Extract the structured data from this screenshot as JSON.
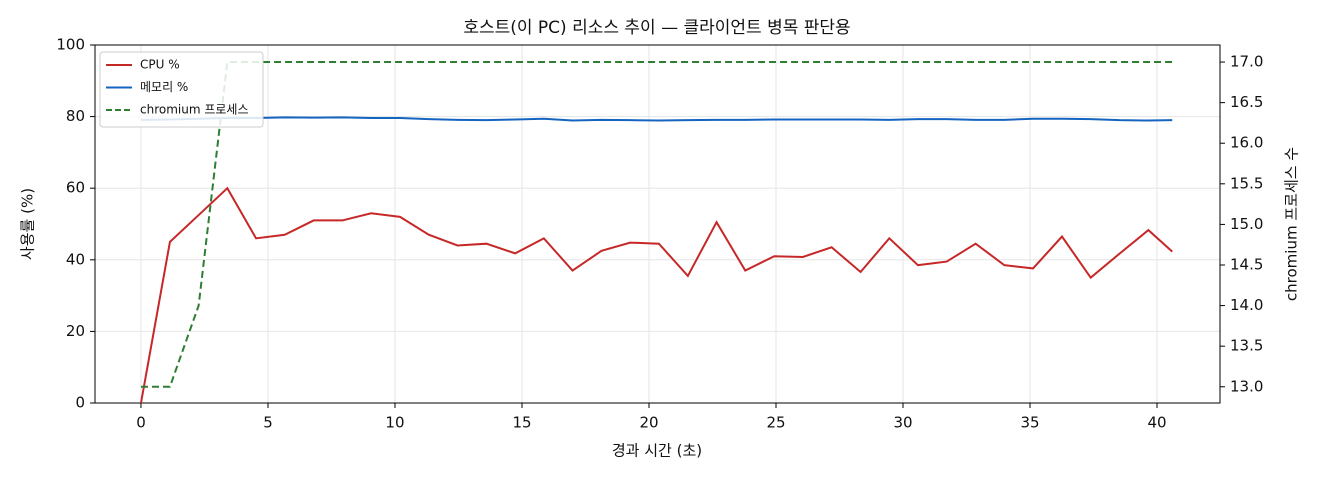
{
  "chart_data": {
    "type": "line",
    "title": "호스트(이 PC) 리소스 추이 — 클라이언트 병목 판단용",
    "x_label": "경과 시간 (초)",
    "y_label": "사용률 (%)",
    "y2_label": "chromium 프로세스 수",
    "x": [
      0,
      1.14,
      2.27,
      3.4,
      4.53,
      5.66,
      6.8,
      7.93,
      9.06,
      10.2,
      11.33,
      12.46,
      13.6,
      14.73,
      15.86,
      16.99,
      18.13,
      19.26,
      20.39,
      21.53,
      22.66,
      23.79,
      24.93,
      26.06,
      27.19,
      28.33,
      29.46,
      30.59,
      31.72,
      32.86,
      33.99,
      35.12,
      36.26,
      37.39,
      38.52,
      39.66,
      40.6
    ],
    "series": [
      {
        "name": "CPU %",
        "color": "#c62828",
        "linestyle": "solid",
        "values": [
          0,
          45,
          52.5,
          60,
          46,
          47,
          51,
          51,
          53,
          52,
          47,
          44,
          44.5,
          41.8,
          46,
          37,
          42.5,
          44.8,
          44.5,
          35.5,
          50.5,
          37,
          41,
          40.8,
          43.5,
          36.6,
          46,
          38.5,
          39.5,
          44.5,
          38.5,
          37.6,
          46.5,
          35,
          41.7,
          48.3,
          42.3
        ]
      },
      {
        "name": "메모리 %",
        "color": "#1565c0",
        "linestyle": "solid",
        "values": [
          79.1,
          79.2,
          79.4,
          79.6,
          79.6,
          79.8,
          79.7,
          79.8,
          79.6,
          79.6,
          79.3,
          79.1,
          79.0,
          79.2,
          79.4,
          78.9,
          79.1,
          79.0,
          78.9,
          79.0,
          79.1,
          79.1,
          79.2,
          79.2,
          79.2,
          79.2,
          79.1,
          79.3,
          79.3,
          79.1,
          79.1,
          79.4,
          79.4,
          79.3,
          79.0,
          78.9,
          79.0
        ]
      },
      {
        "name": "chromium 프로세스",
        "color": "#2e7d32",
        "linestyle": "dashed",
        "axis": "y2",
        "values": [
          13,
          13,
          14,
          17,
          17,
          17,
          17,
          17,
          17,
          17,
          17,
          17,
          17,
          17,
          17,
          17,
          17,
          17,
          17,
          17,
          17,
          17,
          17,
          17,
          17,
          17,
          17,
          17,
          17,
          17,
          17,
          17,
          17,
          17,
          17,
          17,
          17
        ]
      }
    ],
    "xlim": [
      -1.81,
      42.48
    ],
    "xticks": [
      0,
      5,
      10,
      15,
      20,
      25,
      30,
      35,
      40
    ],
    "ylim": [
      0,
      100
    ],
    "yticks": [
      0,
      20,
      40,
      60,
      80,
      100
    ],
    "y2lim": [
      12.8,
      17.21
    ],
    "y2ticks": [
      {
        "value": 13,
        "label": "13.0"
      },
      13.5,
      {
        "value": 14,
        "label": "14.0"
      },
      14.5,
      {
        "value": 15,
        "label": "15.0"
      },
      15.5,
      {
        "value": 16,
        "label": "16.0"
      },
      16.5,
      {
        "value": 17,
        "label": "17.0"
      }
    ],
    "grid": true,
    "legend": "upper left"
  }
}
